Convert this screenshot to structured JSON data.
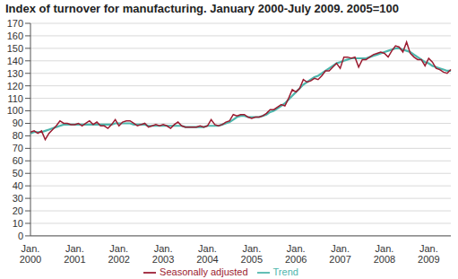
{
  "chart_data": {
    "type": "line",
    "title": "Index of turnover for manufacturing. January 2000-July 2009. 2005=100",
    "categories": [
      "Jan. 2000",
      null,
      null,
      null,
      null,
      null,
      null,
      null,
      null,
      null,
      null,
      null,
      "Jan. 2001",
      null,
      null,
      null,
      null,
      null,
      null,
      null,
      null,
      null,
      null,
      null,
      "Jan. 2002",
      null,
      null,
      null,
      null,
      null,
      null,
      null,
      null,
      null,
      null,
      null,
      "Jan. 2003",
      null,
      null,
      null,
      null,
      null,
      null,
      null,
      null,
      null,
      null,
      null,
      "Jan. 2004",
      null,
      null,
      null,
      null,
      null,
      null,
      null,
      null,
      null,
      null,
      null,
      "Jan. 2005",
      null,
      null,
      null,
      null,
      null,
      null,
      null,
      null,
      null,
      null,
      null,
      "Jan. 2006",
      null,
      null,
      null,
      null,
      null,
      null,
      null,
      null,
      null,
      null,
      null,
      "Jan. 2007",
      null,
      null,
      null,
      null,
      null,
      null,
      null,
      null,
      null,
      null,
      null,
      "Jan. 2008",
      null,
      null,
      null,
      null,
      null,
      null,
      null,
      null,
      null,
      null,
      null,
      "Jan. 2009",
      null,
      null,
      null,
      null,
      null,
      null
    ],
    "series": [
      {
        "name": "Trend",
        "color": "#4db6ac",
        "values": [
          82,
          83,
          83,
          83,
          84,
          85,
          86,
          87,
          88,
          89,
          89,
          89,
          89,
          89,
          89,
          89,
          89,
          89,
          89,
          89,
          89,
          89,
          89,
          90,
          90,
          90,
          90,
          90,
          89,
          89,
          89,
          89,
          88,
          88,
          88,
          88,
          88,
          88,
          88,
          88,
          88,
          88,
          87,
          87,
          87,
          87,
          87,
          87,
          88,
          88,
          88,
          88,
          89,
          90,
          91,
          93,
          95,
          96,
          96,
          95,
          95,
          95,
          95,
          96,
          97,
          99,
          100,
          102,
          104,
          106,
          109,
          112,
          115,
          118,
          121,
          123,
          125,
          127,
          128,
          130,
          132,
          134,
          136,
          138,
          139,
          140,
          141,
          142,
          142,
          142,
          142,
          142,
          143,
          144,
          145,
          146,
          147,
          148,
          149,
          150,
          150,
          149,
          148,
          147,
          145,
          143,
          141,
          139,
          138,
          136,
          135,
          134,
          133,
          132,
          132
        ]
      },
      {
        "name": "Seasonally adjusted",
        "color": "#9b1b30",
        "values": [
          83,
          84,
          82,
          84,
          77,
          82,
          85,
          88,
          92,
          90,
          90,
          89,
          89,
          90,
          88,
          90,
          92,
          89,
          91,
          88,
          88,
          86,
          89,
          93,
          88,
          91,
          92,
          92,
          90,
          88,
          89,
          90,
          87,
          88,
          89,
          88,
          89,
          88,
          86,
          89,
          91,
          88,
          87,
          87,
          87,
          87,
          88,
          87,
          88,
          93,
          89,
          88,
          89,
          91,
          92,
          97,
          96,
          97,
          97,
          95,
          94,
          95,
          95,
          96,
          98,
          101,
          101,
          103,
          105,
          104,
          110,
          117,
          115,
          118,
          125,
          123,
          124,
          126,
          125,
          128,
          132,
          132,
          135,
          138,
          134,
          143,
          143,
          142,
          143,
          135,
          141,
          141,
          143,
          145,
          146,
          147,
          146,
          143,
          148,
          152,
          151,
          147,
          155,
          146,
          143,
          141,
          141,
          136,
          142,
          139,
          134,
          133,
          131,
          130,
          133
        ]
      }
    ],
    "ylim": [
      0,
      170
    ],
    "yticks": [
      0,
      10,
      20,
      30,
      40,
      50,
      60,
      70,
      80,
      90,
      100,
      110,
      120,
      130,
      140,
      150,
      160,
      170
    ],
    "grid": true,
    "legend": "bottom"
  }
}
